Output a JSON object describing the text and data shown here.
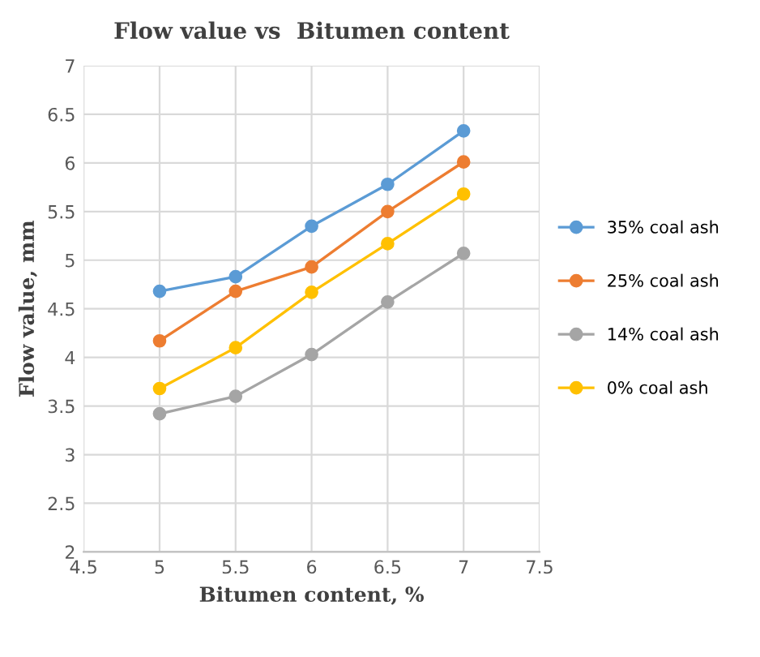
{
  "chart_data": {
    "type": "line",
    "title": "Flow value vs  Bitumen content",
    "xlabel": "Bitumen content, %",
    "ylabel": "Flow value, mm",
    "x": [
      5,
      5.5,
      6,
      6.5,
      7
    ],
    "xlim": [
      4.5,
      7.5
    ],
    "xticks": [
      4.5,
      5,
      5.5,
      6,
      6.5,
      7,
      7.5
    ],
    "ylim": [
      2,
      7
    ],
    "yticks": [
      2,
      2.5,
      3,
      3.5,
      4,
      4.5,
      5,
      5.5,
      6,
      6.5,
      7
    ],
    "grid": true,
    "legend": "right",
    "marker": "circle",
    "line_style": "solid",
    "series": [
      {
        "name": "35% coal ash",
        "color": "#5b9bd5",
        "values": [
          4.68,
          4.83,
          5.35,
          5.78,
          6.33
        ]
      },
      {
        "name": "25% coal ash",
        "color": "#ed7d31",
        "values": [
          4.17,
          4.68,
          4.93,
          5.5,
          6.01
        ]
      },
      {
        "name": "14% coal ash",
        "color": "#a5a5a5",
        "values": [
          3.42,
          3.6,
          4.03,
          4.57,
          5.07
        ]
      },
      {
        "name": "0% coal ash",
        "color": "#ffc000",
        "values": [
          3.68,
          4.1,
          4.67,
          5.17,
          5.68
        ]
      }
    ]
  }
}
